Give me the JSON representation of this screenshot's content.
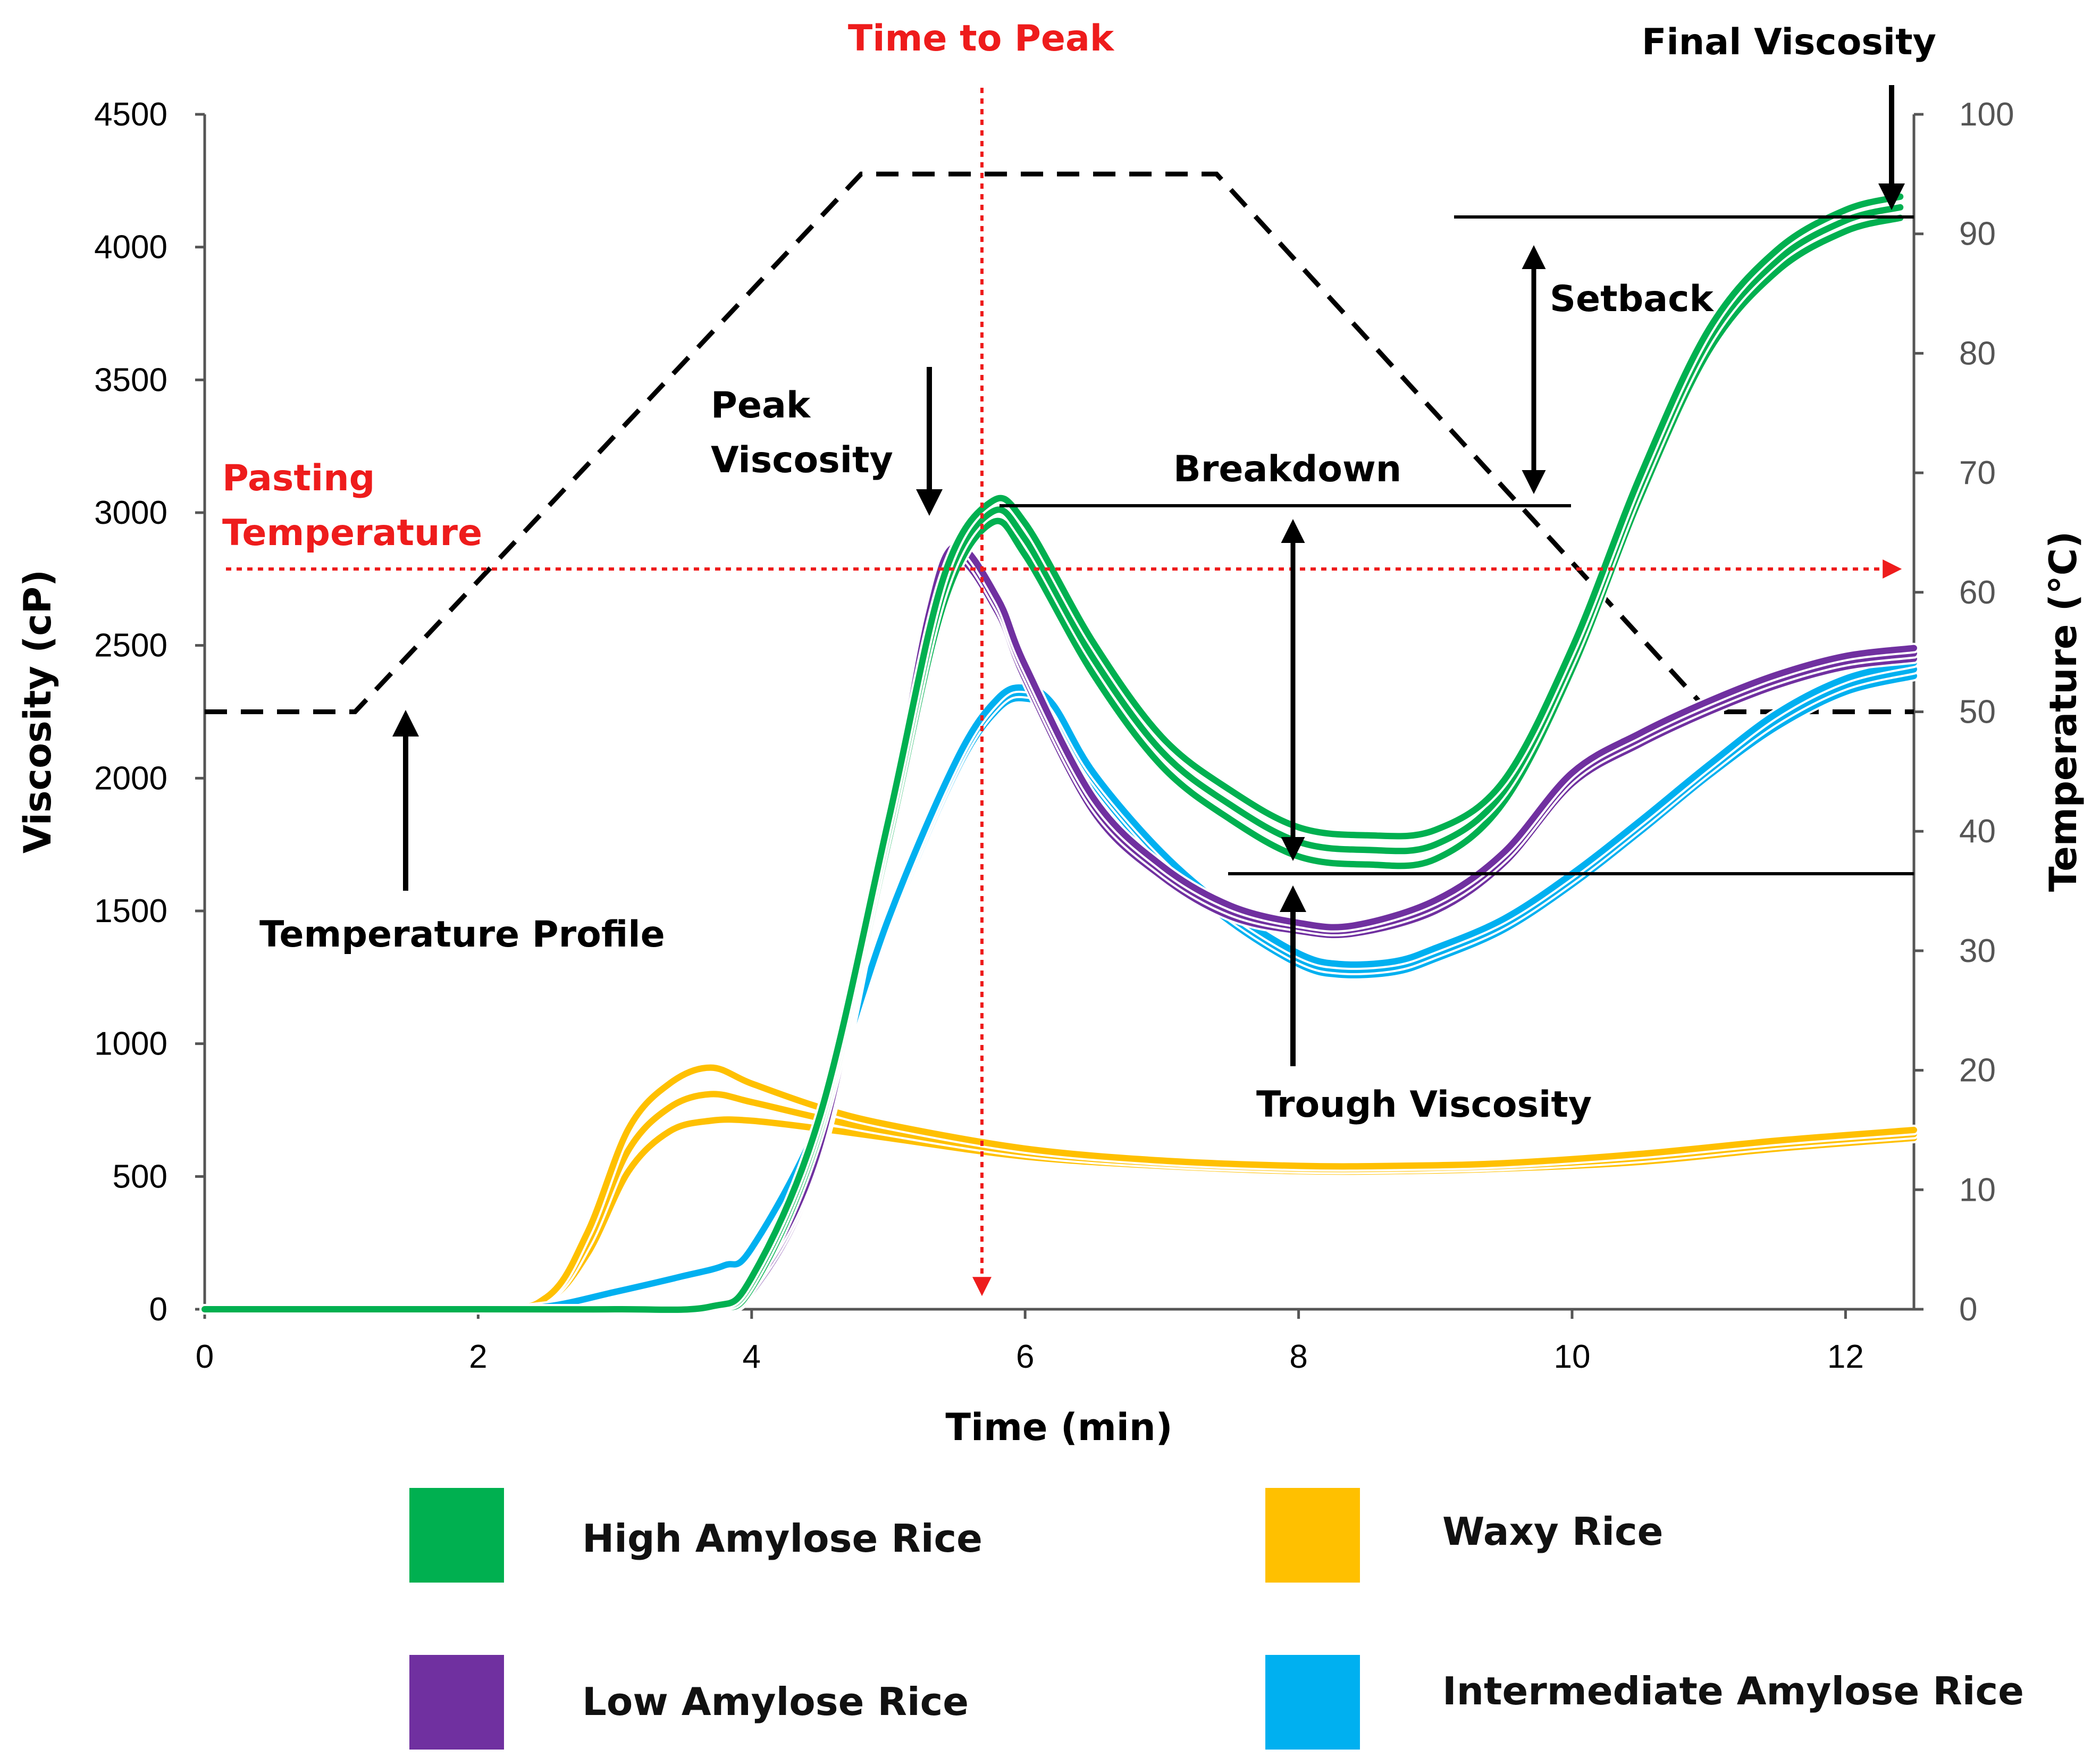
{
  "chart_data": {
    "type": "line",
    "xlabel": "Time (min)",
    "ylabel": "Viscosity (cP)",
    "y2label": "Temperature (°C)",
    "xlim": [
      0,
      12.5
    ],
    "ylim": [
      0,
      4500
    ],
    "y2lim": [
      0,
      100
    ],
    "x_ticks": [
      "0",
      "2",
      "4",
      "6",
      "8",
      "10",
      "12"
    ],
    "y_ticks": [
      "0",
      "500",
      "1000",
      "1500",
      "2000",
      "2500",
      "3000",
      "3500",
      "4000",
      "4500"
    ],
    "y2_ticks": [
      "0",
      "10",
      "20",
      "30",
      "40",
      "50",
      "60",
      "70",
      "80",
      "90",
      "100"
    ],
    "colors": {
      "high": "#00b050",
      "low": "#7030a0",
      "waxy": "#ffc000",
      "intermediate": "#00b0f0",
      "annotation_red": "#ee1c1c"
    },
    "temperature_profile": {
      "name": "Temperature Profile",
      "x": [
        0,
        1.1,
        4.8,
        7.4,
        11.0,
        12.5
      ],
      "y": [
        50,
        50,
        95,
        95,
        50,
        50
      ]
    },
    "series": [
      {
        "name": "High Amylose Rice",
        "color_key": "high",
        "replicates": 3,
        "x": [
          0,
          2,
          3,
          3.7,
          4.0,
          4.5,
          5.0,
          5.4,
          5.75,
          6.0,
          6.5,
          7.0,
          7.5,
          8.0,
          8.5,
          9.0,
          9.5,
          10.0,
          10.5,
          11.0,
          11.5,
          12.0,
          12.4
        ],
        "y": [
          0,
          0,
          0,
          10,
          100,
          700,
          1800,
          2700,
          3000,
          2900,
          2450,
          2100,
          1900,
          1760,
          1730,
          1750,
          1950,
          2450,
          3100,
          3650,
          3950,
          4100,
          4150
        ],
        "spread": [
          0,
          0,
          0,
          0,
          20,
          30,
          40,
          50,
          40,
          60,
          60,
          55,
          55,
          55,
          55,
          55,
          40,
          40,
          40,
          40,
          40,
          40,
          40
        ]
      },
      {
        "name": "Low Amylose Rice",
        "color_key": "low",
        "replicates": 3,
        "x": [
          0,
          2,
          3,
          3.7,
          4.0,
          4.5,
          5.0,
          5.3,
          5.5,
          5.8,
          6.0,
          6.5,
          7.0,
          7.5,
          8.0,
          8.4,
          9.0,
          9.5,
          10.0,
          10.5,
          11.0,
          11.5,
          12.0,
          12.5
        ],
        "y": [
          0,
          0,
          0,
          10,
          80,
          600,
          1800,
          2600,
          2850,
          2650,
          2400,
          1900,
          1650,
          1500,
          1440,
          1430,
          1520,
          1700,
          2000,
          2150,
          2270,
          2370,
          2440,
          2470
        ],
        "spread": [
          0,
          0,
          0,
          0,
          15,
          20,
          25,
          25,
          25,
          25,
          25,
          25,
          20,
          20,
          15,
          15,
          20,
          20,
          20,
          20,
          20,
          20,
          20,
          20
        ]
      },
      {
        "name": "Waxy Rice",
        "color_key": "waxy",
        "replicates": 3,
        "x": [
          0,
          2,
          2.5,
          2.8,
          3.1,
          3.4,
          3.7,
          4.0,
          4.5,
          5.0,
          6.0,
          7.0,
          8.0,
          8.7,
          9.5,
          10.5,
          11.5,
          12.5
        ],
        "y": [
          0,
          5,
          40,
          250,
          600,
          760,
          810,
          780,
          720,
          670,
          590,
          550,
          530,
          530,
          540,
          570,
          620,
          660
        ],
        "spread": [
          0,
          0,
          5,
          40,
          80,
          90,
          100,
          70,
          40,
          25,
          15,
          10,
          10,
          10,
          10,
          15,
          15,
          15
        ]
      },
      {
        "name": "Intermediate Amylose Rice",
        "color_key": "intermediate",
        "replicates": 3,
        "x": [
          0,
          2,
          2.5,
          3.0,
          3.5,
          3.8,
          4.0,
          4.5,
          5.0,
          5.5,
          5.8,
          6.0,
          6.2,
          6.5,
          7.0,
          7.5,
          8.0,
          8.3,
          8.7,
          9.0,
          9.5,
          10.0,
          10.5,
          11.0,
          11.5,
          12.0,
          12.5
        ],
        "y": [
          0,
          0,
          10,
          60,
          120,
          160,
          220,
          700,
          1450,
          2050,
          2280,
          2320,
          2260,
          2000,
          1700,
          1480,
          1320,
          1280,
          1290,
          1340,
          1450,
          1620,
          1820,
          2030,
          2220,
          2350,
          2410
        ],
        "spread": [
          0,
          0,
          0,
          5,
          5,
          5,
          10,
          15,
          20,
          20,
          20,
          20,
          20,
          20,
          20,
          20,
          20,
          20,
          20,
          20,
          20,
          20,
          20,
          20,
          25,
          25,
          25
        ]
      }
    ],
    "annotations": {
      "time_to_peak": "Time to Peak",
      "final_viscosity": "Final Viscosity",
      "setback": "Setback",
      "peak_line1": "Peak",
      "peak_line2": "Viscosity",
      "breakdown": "Breakdown",
      "pasting_line1": "Pasting",
      "pasting_line2": "Temperature",
      "temperature_profile": "Temperature Profile",
      "trough_viscosity": "Trough Viscosity",
      "time_to_peak_x": 5.7,
      "pasting_temperature_c": 62,
      "peak_level": 3030,
      "trough_level": 1630,
      "final_level": 4110
    },
    "legend": [
      {
        "label": "High Amylose Rice",
        "color_key": "high"
      },
      {
        "label": "Waxy Rice",
        "color_key": "waxy"
      },
      {
        "label": "Low Amylose Rice",
        "color_key": "low"
      },
      {
        "label": "Intermediate Amylose Rice",
        "color_key": "intermediate"
      }
    ]
  }
}
